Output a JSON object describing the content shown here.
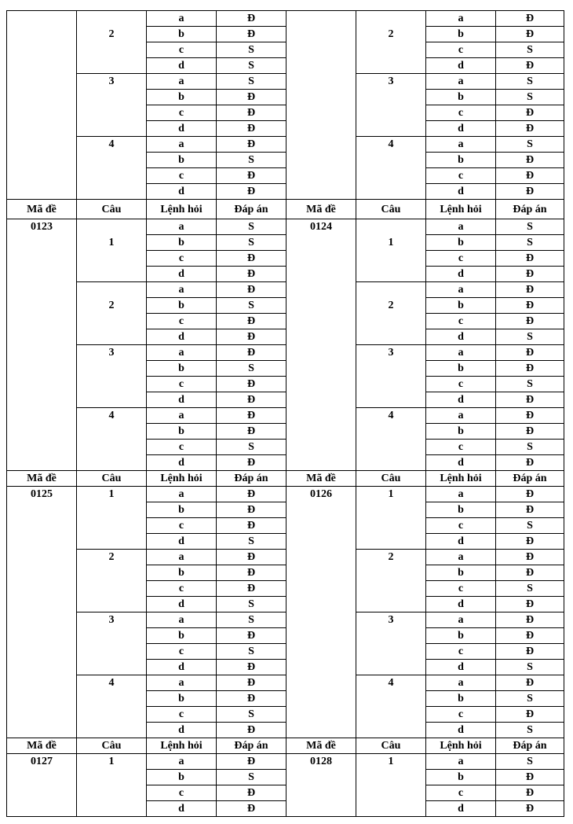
{
  "headers": [
    "Mã đề",
    "Câu",
    "Lệnh hỏi",
    "Đáp án"
  ],
  "letters": [
    "a",
    "b",
    "c",
    "d"
  ],
  "sections": [
    {
      "left": {
        "code": "",
        "questions": [
          {
            "num": "2",
            "answers": [
              "Đ",
              "Đ",
              "S",
              "S"
            ]
          },
          {
            "num": "3",
            "answers": [
              "S",
              "Đ",
              "Đ",
              "Đ"
            ]
          },
          {
            "num": "4",
            "answers": [
              "Đ",
              "S",
              "Đ",
              "Đ"
            ]
          }
        ]
      },
      "right": {
        "code": "",
        "questions": [
          {
            "num": "2",
            "answers": [
              "Đ",
              "Đ",
              "S",
              "Đ"
            ]
          },
          {
            "num": "3",
            "answers": [
              "S",
              "S",
              "Đ",
              "Đ"
            ]
          },
          {
            "num": "4",
            "answers": [
              "S",
              "Đ",
              "Đ",
              "Đ"
            ]
          }
        ]
      }
    },
    {
      "left": {
        "code": "0123",
        "questions": [
          {
            "num": "1",
            "answers": [
              "S",
              "S",
              "Đ",
              "Đ"
            ]
          },
          {
            "num": "2",
            "answers": [
              "Đ",
              "S",
              "Đ",
              "Đ"
            ]
          },
          {
            "num": "3",
            "answers": [
              "Đ",
              "S",
              "Đ",
              "Đ"
            ]
          },
          {
            "num": "4",
            "answers": [
              "Đ",
              "Đ",
              "S",
              "Đ"
            ]
          }
        ]
      },
      "right": {
        "code": "0124",
        "questions": [
          {
            "num": "1",
            "answers": [
              "S",
              "S",
              "Đ",
              "Đ"
            ]
          },
          {
            "num": "2",
            "answers": [
              "Đ",
              "Đ",
              "Đ",
              "S"
            ]
          },
          {
            "num": "3",
            "answers": [
              "Đ",
              "Đ",
              "S",
              "Đ"
            ]
          },
          {
            "num": "4",
            "answers": [
              "Đ",
              "Đ",
              "S",
              "Đ"
            ]
          }
        ]
      }
    },
    {
      "left": {
        "code": "0125",
        "questions": [
          {
            "num": "1",
            "answers": [
              "Đ",
              "Đ",
              "Đ",
              "S"
            ]
          },
          {
            "num": "2",
            "answers": [
              "Đ",
              "Đ",
              "Đ",
              "S"
            ]
          },
          {
            "num": "3",
            "answers": [
              "S",
              "Đ",
              "S",
              "Đ"
            ]
          },
          {
            "num": "4",
            "answers": [
              "Đ",
              "Đ",
              "S",
              "Đ"
            ]
          }
        ]
      },
      "right": {
        "code": "0126",
        "questions": [
          {
            "num": "1",
            "answers": [
              "Đ",
              "Đ",
              "S",
              "Đ"
            ]
          },
          {
            "num": "2",
            "answers": [
              "Đ",
              "Đ",
              "S",
              "Đ"
            ]
          },
          {
            "num": "3",
            "answers": [
              "Đ",
              "Đ",
              "Đ",
              "S"
            ]
          },
          {
            "num": "4",
            "answers": [
              "Đ",
              "S",
              "Đ",
              "S"
            ]
          }
        ]
      }
    },
    {
      "left": {
        "code": "0127",
        "questions": [
          {
            "num": "1",
            "answers": [
              "Đ",
              "S",
              "Đ",
              "Đ"
            ]
          }
        ]
      },
      "right": {
        "code": "0128",
        "questions": [
          {
            "num": "1",
            "answers": [
              "S",
              "Đ",
              "Đ",
              "Đ"
            ]
          }
        ]
      }
    }
  ]
}
